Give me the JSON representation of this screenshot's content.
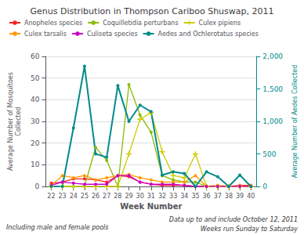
{
  "chart_data": {
    "type": "line",
    "title": "Genus Distribution in Thompson Cariboo Shuswap, 2011",
    "x": [
      22,
      23,
      24,
      25,
      26,
      27,
      28,
      29,
      30,
      31,
      32,
      33,
      34,
      35,
      36,
      37,
      38,
      39,
      40
    ],
    "xlabel": "Week Number",
    "ylabel": "Average Number of Mosquitoes\nCollected",
    "y2label": "Average Number of Aedes Collected",
    "xlim": [
      21.5,
      40.5
    ],
    "xticks": [
      22,
      23,
      24,
      25,
      26,
      27,
      28,
      29,
      30,
      31,
      32,
      33,
      34,
      35,
      36,
      37,
      38,
      39,
      40
    ],
    "ylim": [
      0,
      60
    ],
    "yticks": [
      0,
      10,
      20,
      30,
      40,
      50,
      60
    ],
    "y2lim": [
      0,
      2000
    ],
    "y2ticks": [
      0,
      500,
      1000,
      1500,
      2000
    ],
    "grid": true,
    "legend": "top",
    "annotations": [
      "Including male and female pools",
      "Data up to and include October 12, 2011",
      "Weeks run Sunday to Saturday"
    ],
    "series": [
      {
        "name": "Anopheles species",
        "color": "#ff2222",
        "marker": "circle",
        "axis": "y",
        "values": [
          1.5,
          2.0,
          3.5,
          3.5,
          3.0,
          2.0,
          5.0,
          4.5,
          2.0,
          1.0,
          0.5,
          0.5,
          0.5,
          0.0,
          0.0,
          0.0,
          0.0,
          0.5,
          0.5
        ]
      },
      {
        "name": "Coquilletidia perturbans",
        "color": "#88bb00",
        "marker": "circle",
        "axis": "y",
        "values": [
          0.0,
          0.0,
          0.0,
          0.0,
          18.0,
          12.0,
          0.0,
          47.0,
          33.0,
          25.0,
          5.0,
          3.0,
          2.0,
          2.0,
          0.0,
          0.0,
          0.0,
          0.0,
          0.0
        ]
      },
      {
        "name": "Culex pipiens",
        "color": "#cccc00",
        "marker": "plus",
        "axis": "y",
        "values": [
          0.0,
          0.0,
          0.0,
          0.0,
          0.0,
          0.0,
          0.0,
          15.0,
          31.0,
          34.0,
          16.0,
          5.0,
          4.0,
          15.0,
          0.0,
          0.0,
          0.0,
          0.0,
          0.0
        ]
      },
      {
        "name": "Culex tarsalis",
        "color": "#ff9900",
        "marker": "circle",
        "axis": "y",
        "values": [
          0.5,
          5.0,
          4.0,
          5.0,
          3.0,
          4.0,
          5.0,
          5.5,
          4.0,
          3.0,
          2.0,
          2.0,
          2.0,
          5.0,
          0.0,
          0.5,
          0.0,
          0.0,
          0.0
        ]
      },
      {
        "name": "Culiseta species",
        "color": "#cc00cc",
        "marker": "circle",
        "axis": "y",
        "values": [
          0.5,
          2.0,
          1.5,
          1.0,
          1.0,
          1.0,
          5.0,
          5.0,
          2.0,
          1.0,
          1.0,
          1.0,
          0.5,
          0.0,
          0.0,
          0.0,
          0.0,
          0.0,
          0.0
        ]
      },
      {
        "name": "Aedes and Ochlerotatus species",
        "color": "#008b8b",
        "marker": "circle",
        "axis": "y2",
        "values": [
          0,
          0,
          900,
          1850,
          500,
          450,
          1550,
          1000,
          1250,
          1150,
          175,
          225,
          200,
          0,
          225,
          150,
          0,
          175,
          0
        ]
      }
    ]
  }
}
